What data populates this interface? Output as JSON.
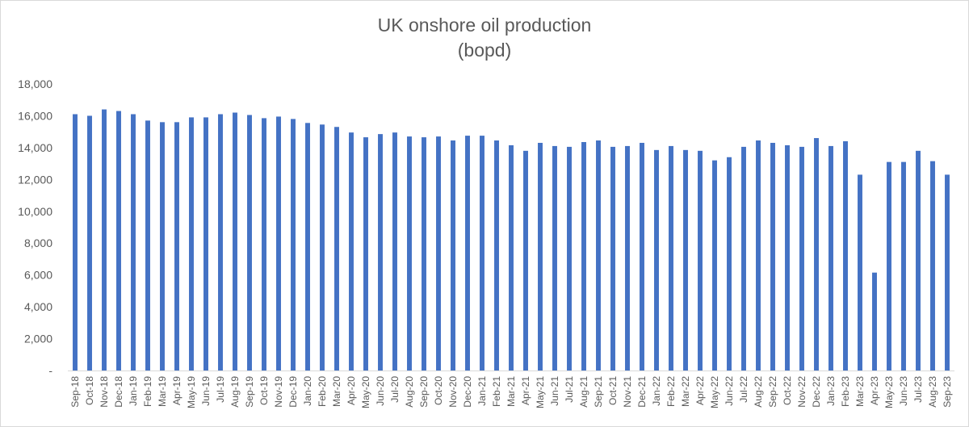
{
  "chart_data": {
    "type": "bar",
    "title": "UK onshore oil production",
    "subtitle": "(bopd)",
    "xlabel": "",
    "ylabel": "",
    "ylim": [
      0,
      18000
    ],
    "yticks": [
      "-",
      "2,000",
      "4,000",
      "6,000",
      "8,000",
      "10,000",
      "12,000",
      "14,000",
      "16,000",
      "18,000"
    ],
    "grid": false,
    "bar_color": "#4472c4",
    "categories": [
      "Sep-18",
      "Oct-18",
      "Nov-18",
      "Dec-18",
      "Jan-19",
      "Feb-19",
      "Mar-19",
      "Apr-19",
      "May-19",
      "Jun-19",
      "Jul-19",
      "Aug-19",
      "Sep-19",
      "Oct-19",
      "Nov-19",
      "Dec-19",
      "Jan-20",
      "Feb-20",
      "Mar-20",
      "Apr-20",
      "May-20",
      "Jun-20",
      "Jul-20",
      "Aug-20",
      "Sep-20",
      "Oct-20",
      "Nov-20",
      "Dec-20",
      "Jan-21",
      "Feb-21",
      "Mar-21",
      "Apr-21",
      "May-21",
      "Jun-21",
      "Jul-21",
      "Aug-21",
      "Sep-21",
      "Oct-21",
      "Nov-21",
      "Dec-21",
      "Jan-22",
      "Feb-22",
      "Mar-22",
      "Apr-22",
      "May-22",
      "Jun-22",
      "Jul-22",
      "Aug-22",
      "Sep-22",
      "Oct-22",
      "Nov-22",
      "Dec-22",
      "Jan-23",
      "Feb-23",
      "Mar-23",
      "Apr-23",
      "May-23",
      "Jun-23",
      "Jul-23",
      "Aug-23",
      "Sep-23"
    ],
    "values": [
      16100,
      16000,
      16400,
      16300,
      16100,
      15700,
      15600,
      15600,
      15900,
      15900,
      16100,
      16200,
      16050,
      15850,
      15950,
      15800,
      15550,
      15450,
      15300,
      14950,
      14650,
      14850,
      14950,
      14700,
      14650,
      14700,
      14450,
      14750,
      14750,
      14450,
      14150,
      13800,
      14300,
      14100,
      14050,
      14350,
      14450,
      14050,
      14100,
      14300,
      13850,
      14100,
      13850,
      13800,
      13200,
      13400,
      14050,
      14450,
      14300,
      14150,
      14050,
      14600,
      14100,
      14400,
      12300,
      6150,
      13100,
      13100,
      13800,
      13150,
      12300
    ]
  }
}
